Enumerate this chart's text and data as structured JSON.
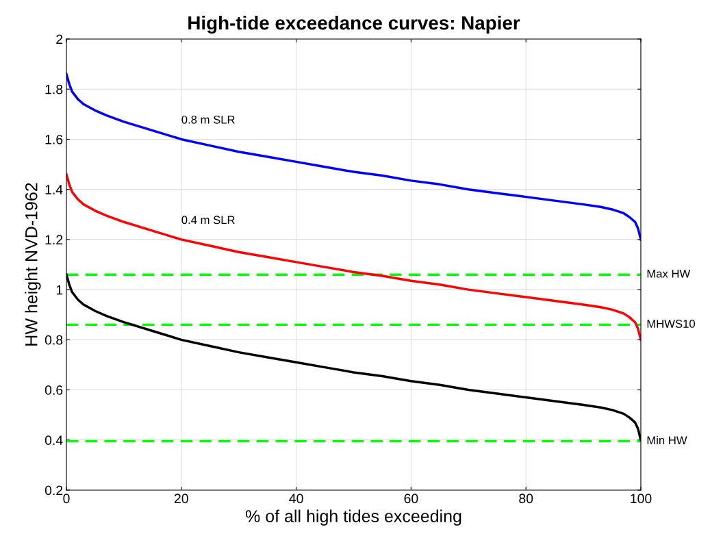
{
  "chart_data": {
    "type": "line",
    "title": "High-tide exceedance curves: Napier",
    "xlabel": "% of all high tides exceeding",
    "ylabel": "HW height NVD-1962",
    "x": [
      0,
      0.5,
      1,
      2,
      3,
      5,
      7,
      10,
      15,
      20,
      25,
      30,
      35,
      40,
      45,
      50,
      55,
      60,
      65,
      70,
      75,
      80,
      85,
      90,
      93,
      95,
      97,
      98,
      99,
      99.5,
      100
    ],
    "series": [
      {
        "name": "0.8 m SLR",
        "color": "#0000ff",
        "values": [
          1.86,
          1.82,
          1.79,
          1.76,
          1.74,
          1.715,
          1.695,
          1.67,
          1.635,
          1.6,
          1.575,
          1.55,
          1.53,
          1.51,
          1.49,
          1.47,
          1.455,
          1.435,
          1.42,
          1.4,
          1.385,
          1.37,
          1.355,
          1.34,
          1.33,
          1.32,
          1.305,
          1.29,
          1.27,
          1.245,
          1.2
        ]
      },
      {
        "name": "0.4 m SLR",
        "color": "#ff0000",
        "values": [
          1.46,
          1.42,
          1.39,
          1.36,
          1.34,
          1.315,
          1.295,
          1.27,
          1.235,
          1.2,
          1.175,
          1.15,
          1.13,
          1.11,
          1.09,
          1.07,
          1.055,
          1.035,
          1.02,
          1.0,
          0.985,
          0.97,
          0.955,
          0.94,
          0.93,
          0.92,
          0.905,
          0.89,
          0.87,
          0.845,
          0.8
        ]
      },
      {
        "color": "#000000",
        "values": [
          1.06,
          1.02,
          0.99,
          0.96,
          0.94,
          0.915,
          0.895,
          0.87,
          0.835,
          0.8,
          0.775,
          0.75,
          0.73,
          0.71,
          0.69,
          0.67,
          0.655,
          0.635,
          0.62,
          0.6,
          0.585,
          0.57,
          0.555,
          0.54,
          0.53,
          0.52,
          0.505,
          0.49,
          0.47,
          0.445,
          0.4
        ]
      }
    ],
    "xlim": [
      0,
      100
    ],
    "xticks": [
      0,
      20,
      40,
      60,
      80,
      100
    ],
    "ylim": [
      0.2,
      2
    ],
    "yticks": [
      0.2,
      0.4,
      0.6,
      0.8,
      1,
      1.2,
      1.4,
      1.6,
      1.8,
      2
    ],
    "grid": true,
    "line_style": "solid",
    "ref_lines": [
      {
        "axis": "y",
        "value": 1.06,
        "label": "Max HW",
        "color": "#00ff00",
        "line_style": "dashed"
      },
      {
        "axis": "y",
        "value": 0.86,
        "label": "MHWS10",
        "color": "#00ff00",
        "line_style": "dashed"
      },
      {
        "axis": "y",
        "value": 0.395,
        "label": "Min HW",
        "color": "#00ff00",
        "line_style": "dashed"
      }
    ]
  }
}
